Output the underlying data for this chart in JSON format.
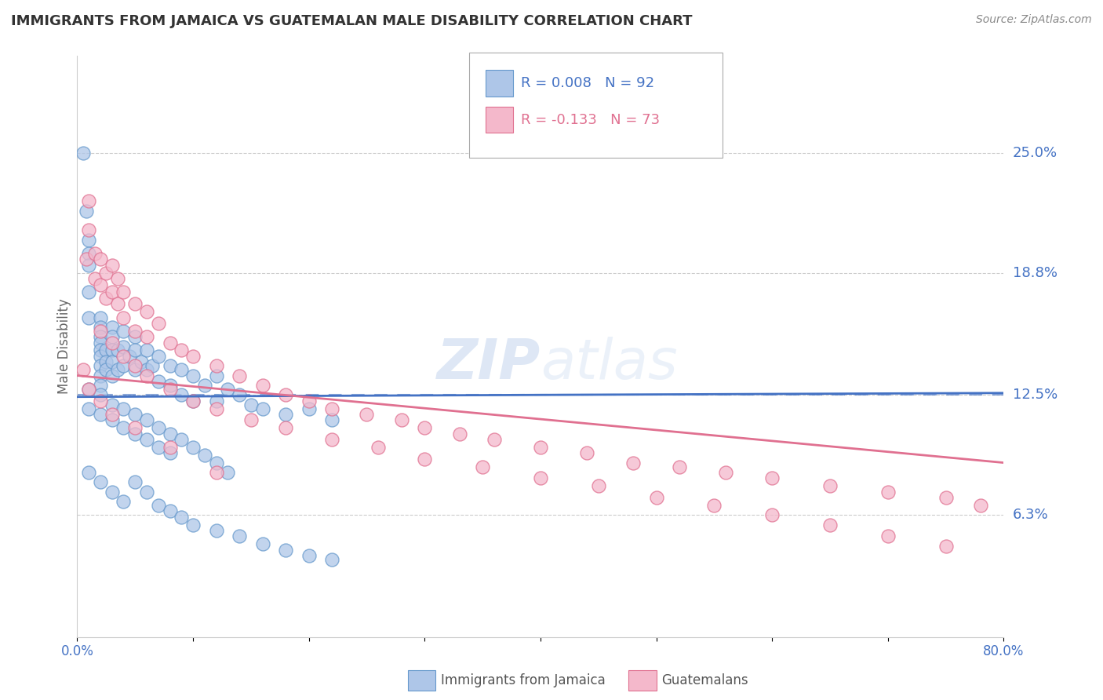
{
  "title": "IMMIGRANTS FROM JAMAICA VS GUATEMALAN MALE DISABILITY CORRELATION CHART",
  "source": "Source: ZipAtlas.com",
  "ylabel": "Male Disability",
  "xlim": [
    0.0,
    0.8
  ],
  "ylim": [
    0.0,
    0.3
  ],
  "xticks": [
    0.0,
    0.1,
    0.2,
    0.3,
    0.4,
    0.5,
    0.6,
    0.7,
    0.8
  ],
  "xticklabels": [
    "0.0%",
    "",
    "",
    "",
    "",
    "",
    "",
    "",
    "80.0%"
  ],
  "ytick_positions": [
    0.063,
    0.125,
    0.188,
    0.25
  ],
  "ytick_labels": [
    "6.3%",
    "12.5%",
    "18.8%",
    "25.0%"
  ],
  "grid_color": "#cccccc",
  "background_color": "#ffffff",
  "series1_color": "#aec6e8",
  "series1_edge": "#6699cc",
  "series2_color": "#f4b8cb",
  "series2_edge": "#e07090",
  "series1_label": "Immigrants from Jamaica",
  "series2_label": "Guatemalans",
  "series1_R": 0.008,
  "series1_N": 92,
  "series2_R": -0.133,
  "series2_N": 73,
  "blue_line_color": "#4472c4",
  "pink_line_color": "#e07090",
  "watermark_color": "#d0ddf0",
  "series1_x": [
    0.005,
    0.008,
    0.01,
    0.01,
    0.01,
    0.01,
    0.01,
    0.02,
    0.02,
    0.02,
    0.02,
    0.02,
    0.02,
    0.02,
    0.02,
    0.02,
    0.025,
    0.025,
    0.025,
    0.03,
    0.03,
    0.03,
    0.03,
    0.03,
    0.035,
    0.035,
    0.04,
    0.04,
    0.04,
    0.045,
    0.05,
    0.05,
    0.05,
    0.055,
    0.06,
    0.06,
    0.065,
    0.07,
    0.07,
    0.08,
    0.08,
    0.09,
    0.09,
    0.1,
    0.1,
    0.11,
    0.12,
    0.12,
    0.13,
    0.14,
    0.15,
    0.16,
    0.18,
    0.2,
    0.22,
    0.01,
    0.01,
    0.02,
    0.02,
    0.03,
    0.03,
    0.04,
    0.04,
    0.05,
    0.05,
    0.06,
    0.06,
    0.07,
    0.07,
    0.08,
    0.08,
    0.09,
    0.1,
    0.11,
    0.12,
    0.13,
    0.01,
    0.02,
    0.03,
    0.04,
    0.05,
    0.06,
    0.07,
    0.08,
    0.09,
    0.1,
    0.12,
    0.14,
    0.16,
    0.18,
    0.2,
    0.22
  ],
  "series1_y": [
    0.25,
    0.22,
    0.205,
    0.198,
    0.192,
    0.178,
    0.165,
    0.165,
    0.16,
    0.155,
    0.152,
    0.148,
    0.145,
    0.14,
    0.135,
    0.13,
    0.148,
    0.142,
    0.138,
    0.16,
    0.155,
    0.148,
    0.142,
    0.135,
    0.148,
    0.138,
    0.158,
    0.15,
    0.14,
    0.145,
    0.155,
    0.148,
    0.138,
    0.142,
    0.148,
    0.138,
    0.14,
    0.145,
    0.132,
    0.14,
    0.13,
    0.138,
    0.125,
    0.135,
    0.122,
    0.13,
    0.135,
    0.122,
    0.128,
    0.125,
    0.12,
    0.118,
    0.115,
    0.118,
    0.112,
    0.128,
    0.118,
    0.125,
    0.115,
    0.12,
    0.112,
    0.118,
    0.108,
    0.115,
    0.105,
    0.112,
    0.102,
    0.108,
    0.098,
    0.105,
    0.095,
    0.102,
    0.098,
    0.094,
    0.09,
    0.085,
    0.085,
    0.08,
    0.075,
    0.07,
    0.08,
    0.075,
    0.068,
    0.065,
    0.062,
    0.058,
    0.055,
    0.052,
    0.048,
    0.045,
    0.042,
    0.04
  ],
  "series2_x": [
    0.005,
    0.008,
    0.01,
    0.01,
    0.015,
    0.015,
    0.02,
    0.02,
    0.025,
    0.025,
    0.03,
    0.03,
    0.035,
    0.035,
    0.04,
    0.04,
    0.05,
    0.05,
    0.06,
    0.06,
    0.07,
    0.08,
    0.09,
    0.1,
    0.12,
    0.14,
    0.16,
    0.18,
    0.2,
    0.22,
    0.25,
    0.28,
    0.3,
    0.33,
    0.36,
    0.4,
    0.44,
    0.48,
    0.52,
    0.56,
    0.6,
    0.65,
    0.7,
    0.75,
    0.78,
    0.02,
    0.03,
    0.04,
    0.05,
    0.06,
    0.08,
    0.1,
    0.12,
    0.15,
    0.18,
    0.22,
    0.26,
    0.3,
    0.35,
    0.4,
    0.45,
    0.5,
    0.55,
    0.6,
    0.65,
    0.7,
    0.75,
    0.01,
    0.02,
    0.03,
    0.05,
    0.08,
    0.12
  ],
  "series2_y": [
    0.138,
    0.195,
    0.225,
    0.21,
    0.198,
    0.185,
    0.195,
    0.182,
    0.188,
    0.175,
    0.192,
    0.178,
    0.185,
    0.172,
    0.178,
    0.165,
    0.172,
    0.158,
    0.168,
    0.155,
    0.162,
    0.152,
    0.148,
    0.145,
    0.14,
    0.135,
    0.13,
    0.125,
    0.122,
    0.118,
    0.115,
    0.112,
    0.108,
    0.105,
    0.102,
    0.098,
    0.095,
    0.09,
    0.088,
    0.085,
    0.082,
    0.078,
    0.075,
    0.072,
    0.068,
    0.158,
    0.152,
    0.145,
    0.14,
    0.135,
    0.128,
    0.122,
    0.118,
    0.112,
    0.108,
    0.102,
    0.098,
    0.092,
    0.088,
    0.082,
    0.078,
    0.072,
    0.068,
    0.063,
    0.058,
    0.052,
    0.047,
    0.128,
    0.122,
    0.115,
    0.108,
    0.098,
    0.085
  ]
}
